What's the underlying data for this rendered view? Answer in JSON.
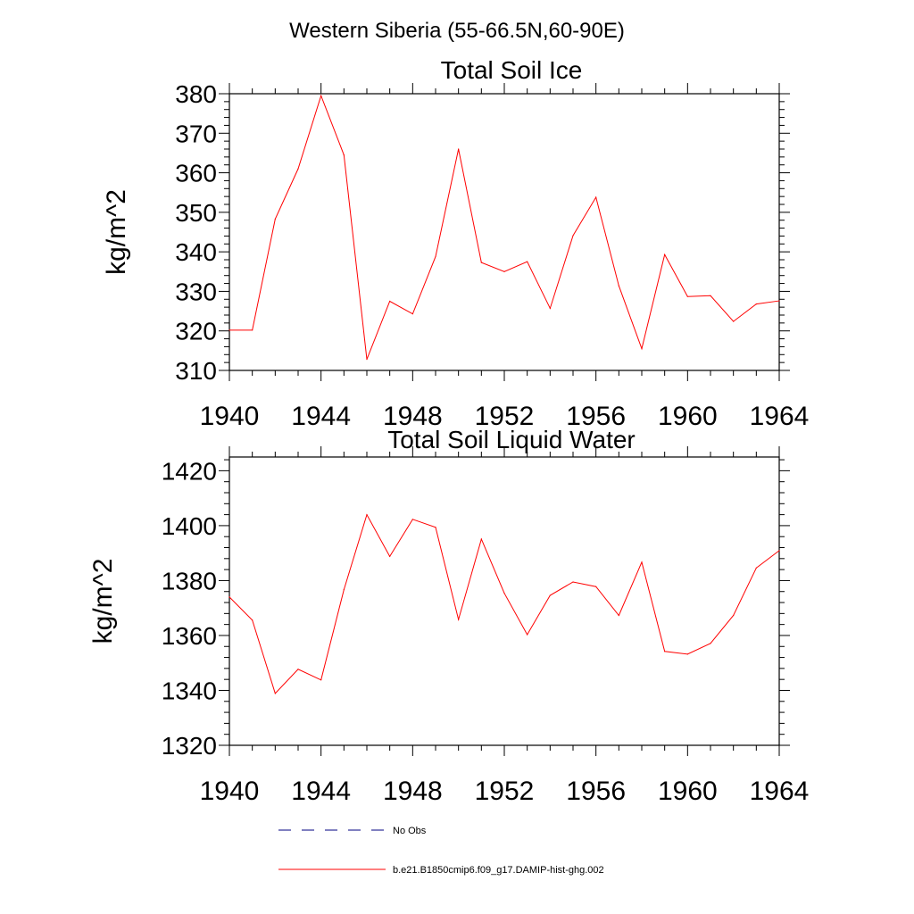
{
  "figure": {
    "suptitle": "Western Siberia (55-66.5N,60-90E)",
    "legend": [
      {
        "label": "No Obs",
        "color": "#000080",
        "style": "dashed"
      },
      {
        "label": "b.e21.B1850cmip6.f09_g17.DAMIP-hist-ghg.002",
        "color": "#ff0000",
        "style": "solid"
      }
    ]
  },
  "chart_data": [
    {
      "type": "line",
      "title": "Total Soil Ice",
      "xlabel": "",
      "ylabel": "kg/m^2",
      "xlim": [
        1940,
        1964
      ],
      "ylim": [
        310,
        380
      ],
      "xticks": [
        1940,
        1944,
        1948,
        1952,
        1956,
        1960,
        1964
      ],
      "yticks": [
        310,
        320,
        330,
        340,
        350,
        360,
        370,
        380
      ],
      "x": [
        1940,
        1941,
        1942,
        1943,
        1944,
        1945,
        1946,
        1947,
        1948,
        1949,
        1950,
        1951,
        1952,
        1953,
        1954,
        1955,
        1956,
        1957,
        1958,
        1959,
        1960,
        1961,
        1962,
        1963,
        1964
      ],
      "series": [
        {
          "name": "b.e21.B1850cmip6.f09_g17.DAMIP-hist-ghg.002",
          "color": "#ff0000",
          "values": [
            320.2,
            320.2,
            348.3,
            361.0,
            379.5,
            364.5,
            312.8,
            327.5,
            324.3,
            338.8,
            366.0,
            337.3,
            335.0,
            337.5,
            325.7,
            344.1,
            353.8,
            331.4,
            315.5,
            339.3,
            328.7,
            328.9,
            322.4,
            326.8,
            327.6
          ]
        }
      ],
      "grid": false
    },
    {
      "type": "line",
      "title": "Total Soil Liquid Water",
      "xlabel": "",
      "ylabel": "kg/m^2",
      "xlim": [
        1940,
        1964
      ],
      "ylim": [
        1320,
        1425
      ],
      "xticks": [
        1940,
        1944,
        1948,
        1952,
        1956,
        1960,
        1964
      ],
      "yticks": [
        1320,
        1340,
        1360,
        1380,
        1400,
        1420
      ],
      "x": [
        1940,
        1941,
        1942,
        1943,
        1944,
        1945,
        1946,
        1947,
        1948,
        1949,
        1950,
        1951,
        1952,
        1953,
        1954,
        1955,
        1956,
        1957,
        1958,
        1959,
        1960,
        1961,
        1962,
        1963,
        1964
      ],
      "series": [
        {
          "name": "b.e21.B1850cmip6.f09_g17.DAMIP-hist-ghg.002",
          "color": "#ff0000",
          "values": [
            1374.0,
            1365.6,
            1338.9,
            1347.7,
            1343.8,
            1376.7,
            1404.0,
            1388.8,
            1402.3,
            1399.4,
            1365.8,
            1395.1,
            1375.4,
            1360.3,
            1374.6,
            1379.5,
            1377.8,
            1367.3,
            1386.7,
            1354.2,
            1353.2,
            1357.1,
            1367.3,
            1384.6,
            1390.9
          ]
        }
      ],
      "grid": false
    }
  ]
}
